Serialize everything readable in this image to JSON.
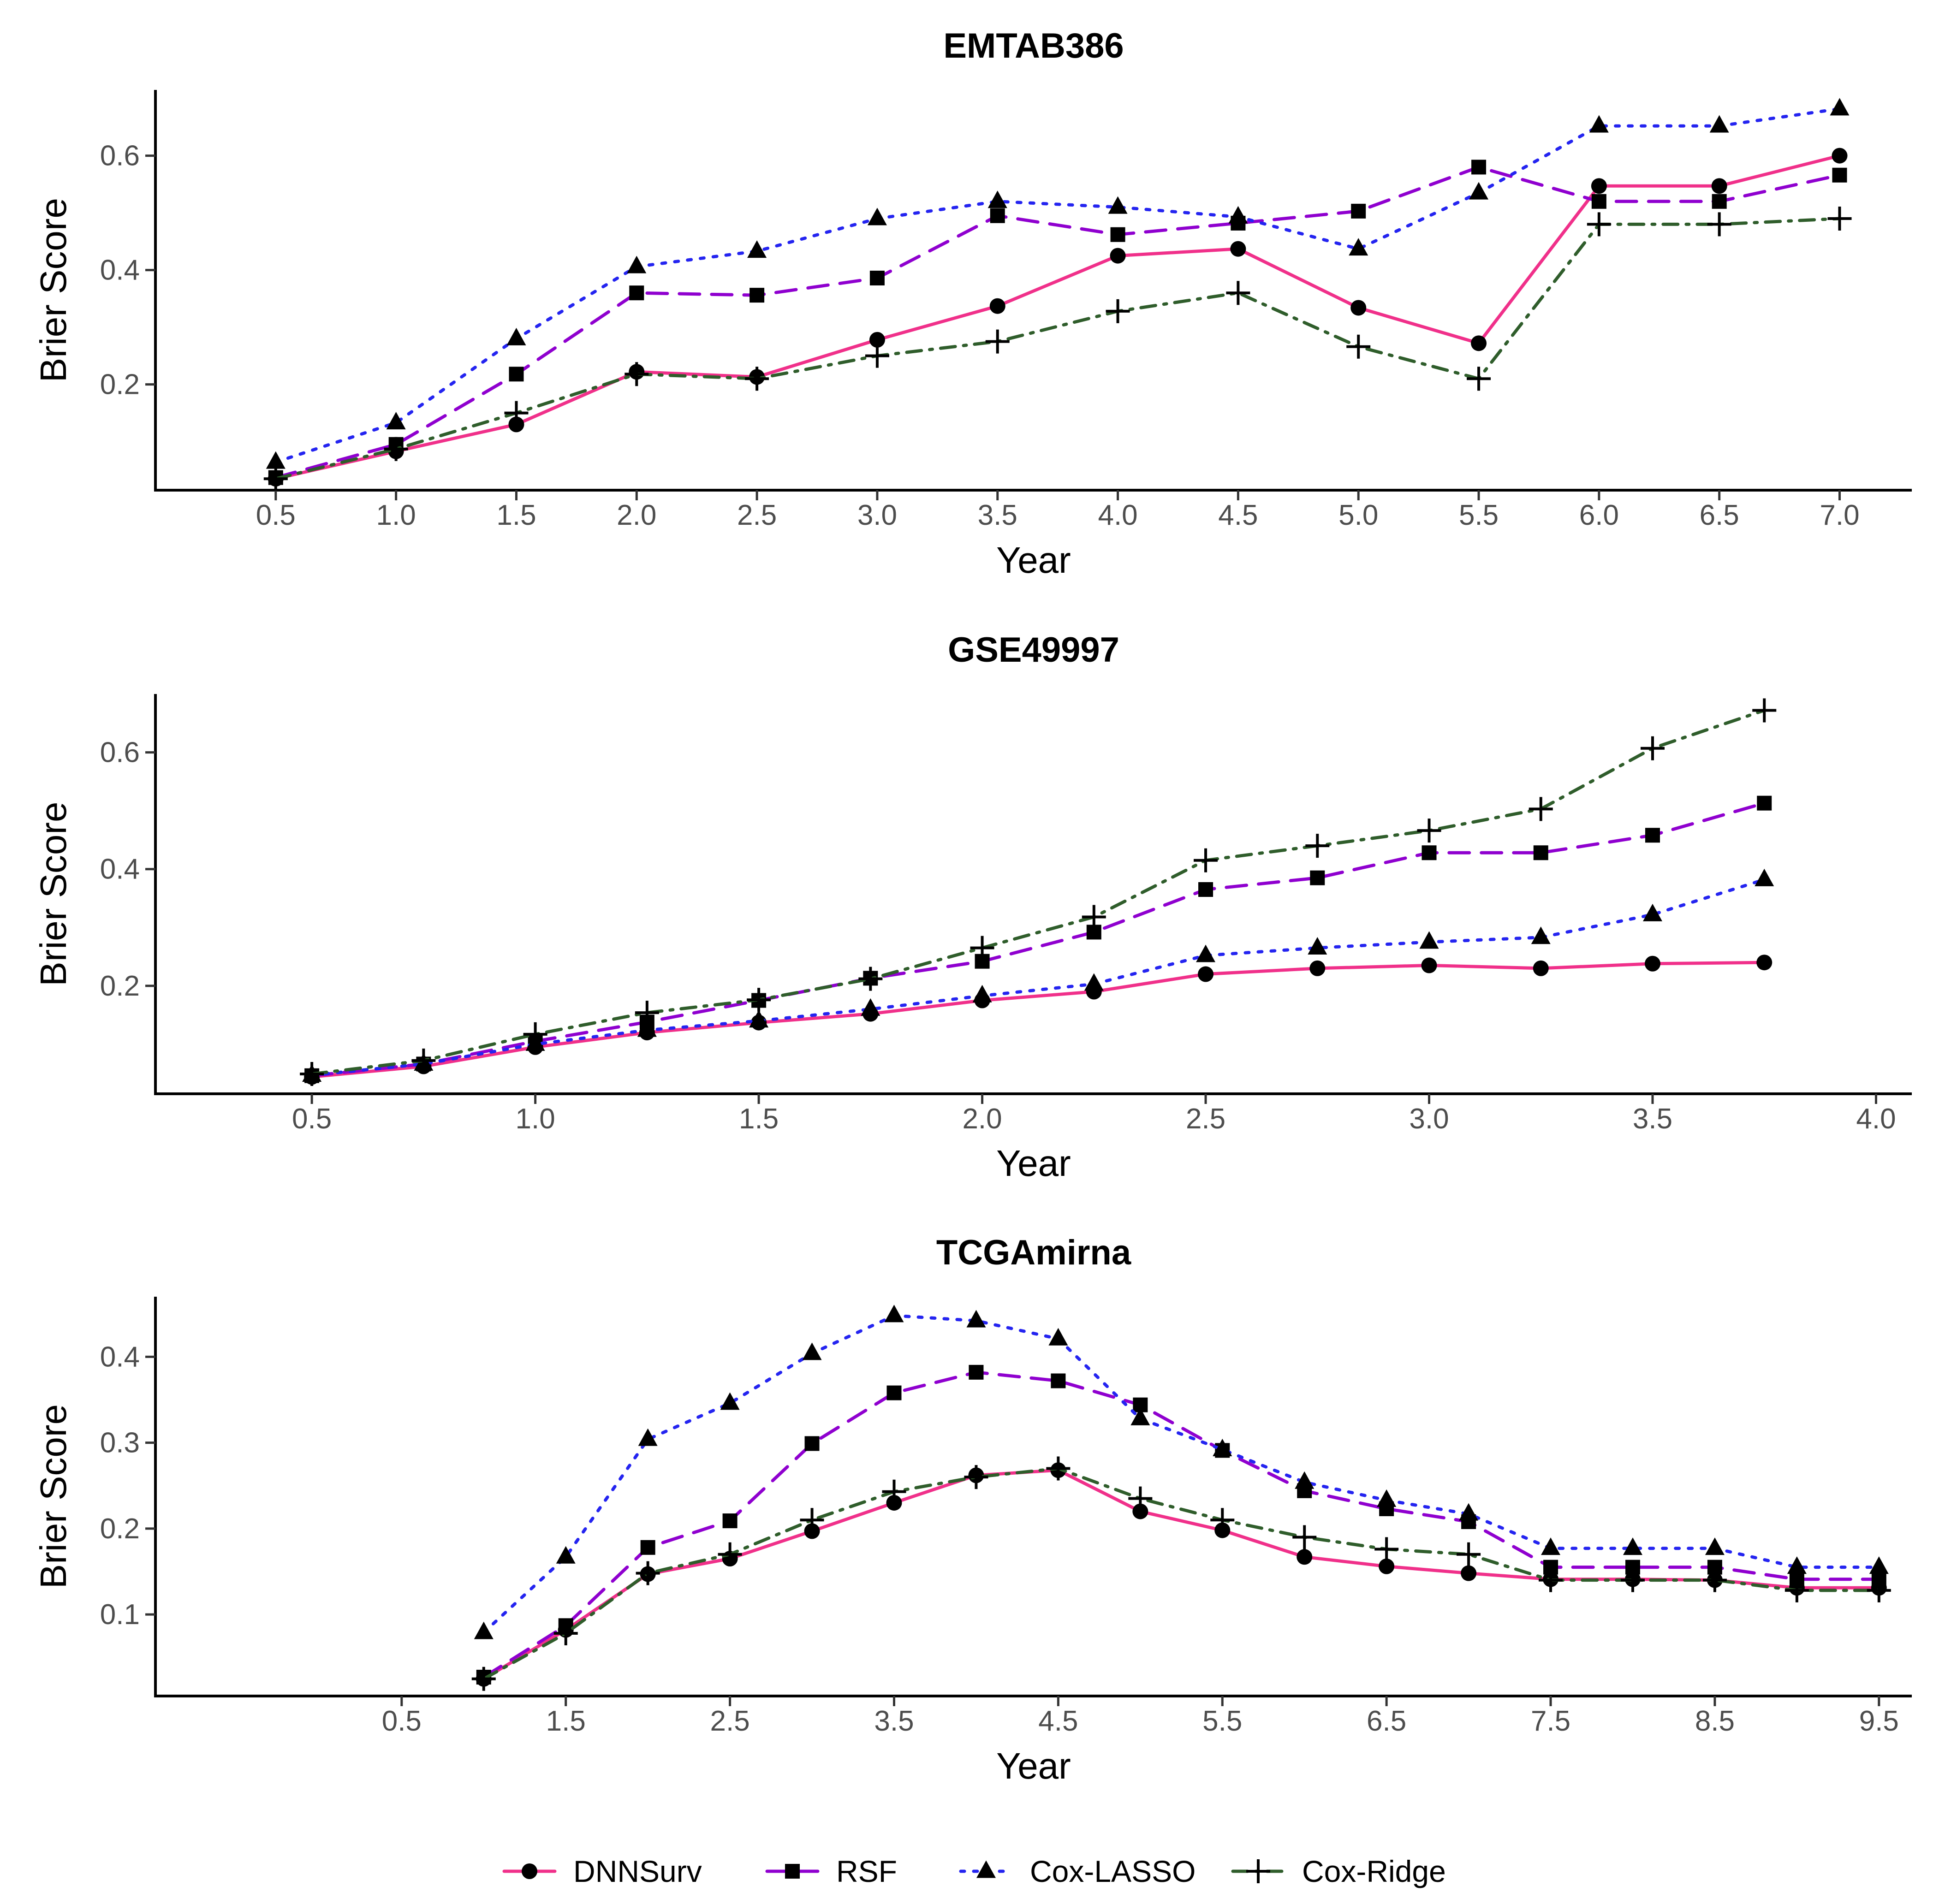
{
  "chart_data": [
    {
      "type": "line",
      "title": "EMTAB386",
      "xlabel": "Year",
      "ylabel": "Brier Score",
      "xlim": [
        0,
        7.3
      ],
      "ylim": [
        0.015,
        0.715
      ],
      "xticks": [
        0.5,
        1.0,
        1.5,
        2.0,
        2.5,
        3.0,
        3.5,
        4.0,
        4.5,
        5.0,
        5.5,
        6.0,
        6.5,
        7.0
      ],
      "xtick_labels": [
        "0.5",
        "1.0",
        "1.5",
        "2.0",
        "2.5",
        "3.0",
        "3.5",
        "4.0",
        "4.5",
        "5.0",
        "5.5",
        "6.0",
        "6.5",
        "7.0"
      ],
      "yticks": [
        0.2,
        0.4,
        0.6
      ],
      "ytick_labels": [
        "0.2",
        "0.4",
        "0.6"
      ],
      "x": [
        0.5,
        1.0,
        1.5,
        2.0,
        2.5,
        3.0,
        3.5,
        4.0,
        4.5,
        5.0,
        5.5,
        6.0,
        6.5,
        7.0
      ],
      "series": [
        {
          "name": "DNNSurv",
          "values": [
            0.035,
            0.083,
            0.13,
            0.222,
            0.213,
            0.278,
            0.337,
            0.425,
            0.437,
            0.334,
            0.272,
            0.547,
            0.547,
            0.6
          ]
        },
        {
          "name": "RSF",
          "values": [
            0.037,
            0.095,
            0.218,
            0.36,
            0.356,
            0.386,
            0.495,
            0.462,
            0.482,
            0.503,
            0.58,
            0.52,
            0.52,
            0.566
          ]
        },
        {
          "name": "Cox-LASSO",
          "values": [
            0.064,
            0.133,
            0.28,
            0.406,
            0.433,
            0.49,
            0.52,
            0.51,
            0.493,
            0.437,
            0.535,
            0.652,
            0.652,
            0.682
          ]
        },
        {
          "name": "Cox-Ridge",
          "values": [
            0.035,
            0.087,
            0.15,
            0.218,
            0.21,
            0.25,
            0.275,
            0.328,
            0.36,
            0.266,
            0.21,
            0.48,
            0.48,
            0.49
          ]
        }
      ]
    },
    {
      "type": "line",
      "title": "GSE49997",
      "xlabel": "Year",
      "ylabel": "Brier Score",
      "xlim": [
        0.15,
        4.08
      ],
      "ylim": [
        0.015,
        0.7
      ],
      "xticks": [
        0.5,
        1.0,
        1.5,
        2.0,
        2.5,
        3.0,
        3.5,
        4.0
      ],
      "xtick_labels": [
        "0.5",
        "1.0",
        "1.5",
        "2.0",
        "2.5",
        "3.0",
        "3.5",
        "4.0"
      ],
      "yticks": [
        0.2,
        0.4,
        0.6
      ],
      "ytick_labels": [
        "0.2",
        "0.4",
        "0.6"
      ],
      "x": [
        0.5,
        0.75,
        1.0,
        1.25,
        1.5,
        1.75,
        2.0,
        2.25,
        2.5,
        2.75,
        3.0,
        3.25,
        3.5,
        3.75
      ],
      "series": [
        {
          "name": "DNNSurv",
          "values": [
            0.044,
            0.062,
            0.095,
            0.12,
            0.137,
            0.152,
            0.175,
            0.19,
            0.22,
            0.23,
            0.235,
            0.23,
            0.238,
            0.24
          ]
        },
        {
          "name": "RSF",
          "values": [
            0.046,
            0.066,
            0.105,
            0.138,
            0.175,
            0.213,
            0.242,
            0.292,
            0.365,
            0.385,
            0.428,
            0.428,
            0.458,
            0.513
          ]
        },
        {
          "name": "Cox-LASSO",
          "values": [
            0.047,
            0.066,
            0.1,
            0.124,
            0.14,
            0.16,
            0.183,
            0.203,
            0.252,
            0.265,
            0.275,
            0.283,
            0.322,
            0.382
          ]
        },
        {
          "name": "Cox-Ridge",
          "values": [
            0.049,
            0.072,
            0.117,
            0.154,
            0.176,
            0.212,
            0.265,
            0.318,
            0.415,
            0.44,
            0.466,
            0.503,
            0.607,
            0.672
          ]
        }
      ]
    },
    {
      "type": "line",
      "title": "TCGAmirna",
      "xlabel": "Year",
      "ylabel": "Brier Score",
      "xlim": [
        -1.0,
        9.7
      ],
      "ylim": [
        0.005,
        0.47
      ],
      "xticks": [
        0.5,
        1.5,
        2.5,
        3.5,
        4.5,
        5.5,
        6.5,
        7.5,
        8.5,
        9.5
      ],
      "xtick_labels": [
        "0.5",
        "1.5",
        "2.5",
        "3.5",
        "4.5",
        "5.5",
        "6.5",
        "7.5",
        "8.5",
        "9.5"
      ],
      "yticks": [
        0.1,
        0.2,
        0.3,
        0.4
      ],
      "ytick_labels": [
        "0.1",
        "0.2",
        "0.3",
        "0.4"
      ],
      "x": [
        1.0,
        1.5,
        2.0,
        2.5,
        3.0,
        3.5,
        4.0,
        4.5,
        5.0,
        5.5,
        6.0,
        6.5,
        7.0,
        7.5,
        8.0,
        8.5,
        9.0,
        9.5
      ],
      "series": [
        {
          "name": "DNNSurv",
          "values": [
            0.025,
            0.082,
            0.147,
            0.165,
            0.197,
            0.23,
            0.262,
            0.268,
            0.22,
            0.198,
            0.167,
            0.156,
            0.148,
            0.141,
            0.141,
            0.14,
            0.131,
            0.131
          ]
        },
        {
          "name": "RSF",
          "values": [
            0.027,
            0.087,
            0.178,
            0.209,
            0.299,
            0.358,
            0.382,
            0.372,
            0.344,
            0.291,
            0.244,
            0.223,
            0.208,
            0.155,
            0.155,
            0.155,
            0.141,
            0.141
          ]
        },
        {
          "name": "Cox-LASSO",
          "values": [
            0.079,
            0.167,
            0.304,
            0.346,
            0.404,
            0.448,
            0.442,
            0.421,
            0.328,
            0.292,
            0.254,
            0.233,
            0.217,
            0.177,
            0.177,
            0.177,
            0.155,
            0.155
          ]
        },
        {
          "name": "Cox-Ridge",
          "values": [
            0.025,
            0.078,
            0.148,
            0.17,
            0.21,
            0.243,
            0.26,
            0.27,
            0.235,
            0.21,
            0.19,
            0.176,
            0.17,
            0.14,
            0.14,
            0.14,
            0.128,
            0.128
          ]
        }
      ]
    }
  ],
  "legend": {
    "position": "bottom",
    "items": [
      {
        "name": "DNNSurv",
        "color": "#f0308a",
        "dash": "solid",
        "marker": "circle"
      },
      {
        "name": "RSF",
        "color": "#8f00cf",
        "dash": "dashed",
        "marker": "square"
      },
      {
        "name": "Cox-LASSO",
        "color": "#2424f0",
        "dash": "dotted",
        "marker": "triangle"
      },
      {
        "name": "Cox-Ridge",
        "color": "#2f5d2b",
        "dash": "dotdash",
        "marker": "plus"
      }
    ]
  }
}
